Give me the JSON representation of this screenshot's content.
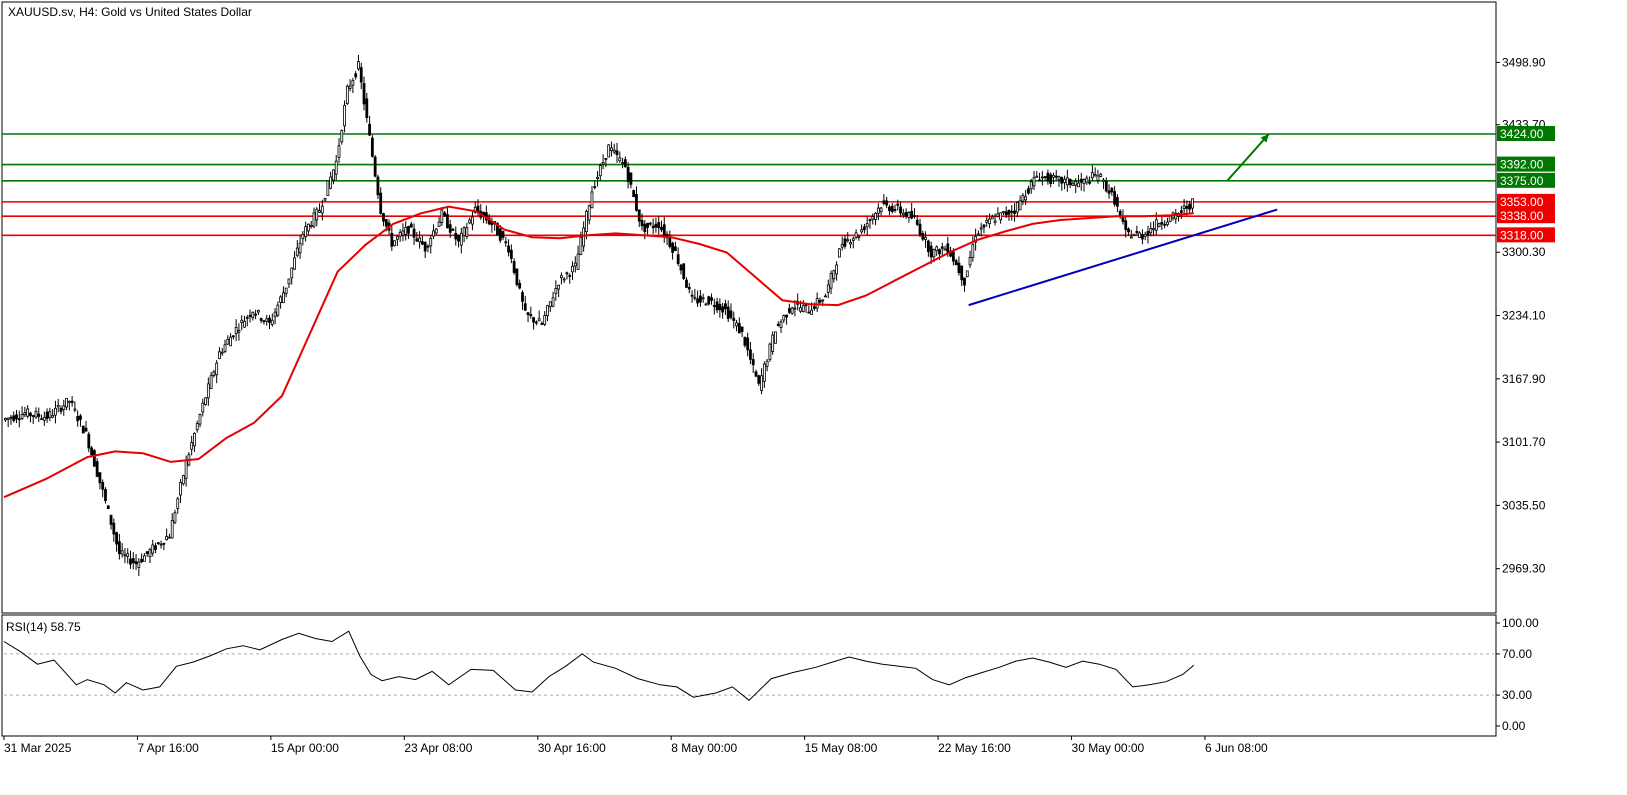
{
  "chart_data": {
    "type": "candlestick",
    "title": "XAUUSD.sv, H4:  Gold vs United States Dollar",
    "y_ticks": [
      "3498.90",
      "3433.70",
      "3300.30",
      "3234.10",
      "3167.90",
      "3101.70",
      "3035.50",
      "2969.30"
    ],
    "y_tick_values": [
      3498.9,
      3433.7,
      3300.3,
      3234.1,
      3167.9,
      3101.7,
      3035.5,
      2969.3
    ],
    "ylim": [
      2925,
      3560
    ],
    "x_ticks": [
      "31 Mar 2025",
      "7 Apr 16:00",
      "15 Apr 00:00",
      "23 Apr 08:00",
      "30 Apr 16:00",
      "8 May 00:00",
      "15 May 08:00",
      "22 May 16:00",
      "30 May 00:00",
      "6 Jun 08:00"
    ],
    "x_range_bars": [
      0,
      430
    ],
    "price_path": [
      [
        0,
        3125
      ],
      [
        8,
        3132
      ],
      [
        16,
        3128
      ],
      [
        24,
        3145
      ],
      [
        30,
        3110
      ],
      [
        36,
        3050
      ],
      [
        42,
        2985
      ],
      [
        48,
        2975
      ],
      [
        54,
        2990
      ],
      [
        60,
        3005
      ],
      [
        66,
        3080
      ],
      [
        72,
        3140
      ],
      [
        78,
        3195
      ],
      [
        84,
        3220
      ],
      [
        90,
        3240
      ],
      [
        96,
        3225
      ],
      [
        102,
        3265
      ],
      [
        108,
        3320
      ],
      [
        114,
        3345
      ],
      [
        120,
        3395
      ],
      [
        124,
        3470
      ],
      [
        128,
        3495
      ],
      [
        132,
        3420
      ],
      [
        136,
        3345
      ],
      [
        140,
        3310
      ],
      [
        146,
        3325
      ],
      [
        152,
        3305
      ],
      [
        158,
        3340
      ],
      [
        164,
        3310
      ],
      [
        170,
        3345
      ],
      [
        176,
        3330
      ],
      [
        182,
        3305
      ],
      [
        188,
        3235
      ],
      [
        194,
        3225
      ],
      [
        200,
        3270
      ],
      [
        206,
        3285
      ],
      [
        212,
        3365
      ],
      [
        218,
        3410
      ],
      [
        224,
        3390
      ],
      [
        230,
        3325
      ],
      [
        236,
        3330
      ],
      [
        242,
        3300
      ],
      [
        248,
        3250
      ],
      [
        254,
        3250
      ],
      [
        260,
        3240
      ],
      [
        266,
        3215
      ],
      [
        272,
        3160
      ],
      [
        278,
        3220
      ],
      [
        284,
        3245
      ],
      [
        290,
        3240
      ],
      [
        296,
        3255
      ],
      [
        302,
        3310
      ],
      [
        308,
        3320
      ],
      [
        316,
        3350
      ],
      [
        322,
        3345
      ],
      [
        328,
        3335
      ],
      [
        334,
        3300
      ],
      [
        340,
        3305
      ],
      [
        346,
        3270
      ],
      [
        350,
        3320
      ],
      [
        356,
        3335
      ],
      [
        364,
        3345
      ],
      [
        372,
        3380
      ],
      [
        380,
        3375
      ],
      [
        388,
        3372
      ],
      [
        394,
        3382
      ],
      [
        400,
        3355
      ],
      [
        404,
        3320
      ],
      [
        410,
        3318
      ],
      [
        416,
        3332
      ],
      [
        422,
        3338
      ],
      [
        426,
        3348
      ],
      [
        428,
        3352
      ]
    ],
    "ma_series": {
      "name": "",
      "color": "#e60000",
      "points": [
        [
          0,
          3044
        ],
        [
          15,
          3063
        ],
        [
          30,
          3086
        ],
        [
          40,
          3092
        ],
        [
          50,
          3090
        ],
        [
          60,
          3081
        ],
        [
          70,
          3084
        ],
        [
          80,
          3106
        ],
        [
          90,
          3122
        ],
        [
          100,
          3150
        ],
        [
          110,
          3215
        ],
        [
          120,
          3280
        ],
        [
          130,
          3308
        ],
        [
          140,
          3330
        ],
        [
          150,
          3341
        ],
        [
          160,
          3348
        ],
        [
          170,
          3343
        ],
        [
          180,
          3324
        ],
        [
          190,
          3316
        ],
        [
          200,
          3315
        ],
        [
          210,
          3318
        ],
        [
          220,
          3320
        ],
        [
          230,
          3318
        ],
        [
          240,
          3316
        ],
        [
          250,
          3309
        ],
        [
          260,
          3300
        ],
        [
          270,
          3275
        ],
        [
          280,
          3250
        ],
        [
          290,
          3246
        ],
        [
          300,
          3245
        ],
        [
          310,
          3255
        ],
        [
          320,
          3270
        ],
        [
          330,
          3285
        ],
        [
          340,
          3300
        ],
        [
          350,
          3313
        ],
        [
          360,
          3322
        ],
        [
          370,
          3330
        ],
        [
          380,
          3334
        ],
        [
          390,
          3336
        ],
        [
          400,
          3338
        ],
        [
          410,
          3338
        ],
        [
          420,
          3339
        ],
        [
          428,
          3341
        ]
      ]
    },
    "horizontal_levels": [
      {
        "value": 3424.0,
        "label": "3424.00",
        "color": "#007700"
      },
      {
        "value": 3392.0,
        "label": "3392.00",
        "color": "#007700"
      },
      {
        "value": 3375.0,
        "label": "3375.00",
        "color": "#007700"
      },
      {
        "value": 3353.0,
        "label": "3353.00",
        "color": "#ee0000"
      },
      {
        "value": 3338.0,
        "label": "3338.00",
        "color": "#ee0000"
      },
      {
        "value": 3318.0,
        "label": "3318.00",
        "color": "#ee0000"
      }
    ],
    "trendline": {
      "from": [
        347,
        3245
      ],
      "to": [
        458,
        3345
      ],
      "color": "#0000bb"
    },
    "arrow": {
      "from": [
        440,
        3375
      ],
      "to": [
        455,
        3424
      ],
      "color": "#007700"
    },
    "rsi": {
      "label": "RSI(14) 58.75",
      "y_ticks": [
        "100.00",
        "70.00",
        "30.00",
        "0.00"
      ],
      "y_tick_values": [
        100,
        70,
        30,
        0
      ],
      "levels": [
        70,
        30
      ],
      "values": [
        [
          0,
          82
        ],
        [
          6,
          72
        ],
        [
          12,
          60
        ],
        [
          18,
          64
        ],
        [
          22,
          52
        ],
        [
          26,
          40
        ],
        [
          30,
          45
        ],
        [
          36,
          40
        ],
        [
          40,
          32
        ],
        [
          44,
          42
        ],
        [
          50,
          35
        ],
        [
          56,
          38
        ],
        [
          62,
          58
        ],
        [
          68,
          62
        ],
        [
          74,
          68
        ],
        [
          80,
          75
        ],
        [
          86,
          78
        ],
        [
          92,
          74
        ],
        [
          100,
          84
        ],
        [
          106,
          90
        ],
        [
          112,
          85
        ],
        [
          118,
          82
        ],
        [
          124,
          92
        ],
        [
          128,
          68
        ],
        [
          132,
          50
        ],
        [
          136,
          44
        ],
        [
          142,
          48
        ],
        [
          148,
          45
        ],
        [
          154,
          53
        ],
        [
          160,
          40
        ],
        [
          168,
          55
        ],
        [
          176,
          54
        ],
        [
          184,
          35
        ],
        [
          190,
          33
        ],
        [
          196,
          48
        ],
        [
          202,
          58
        ],
        [
          208,
          70
        ],
        [
          212,
          62
        ],
        [
          220,
          56
        ],
        [
          228,
          46
        ],
        [
          236,
          40
        ],
        [
          242,
          38
        ],
        [
          248,
          28
        ],
        [
          256,
          32
        ],
        [
          262,
          38
        ],
        [
          268,
          25
        ],
        [
          276,
          46
        ],
        [
          284,
          52
        ],
        [
          292,
          57
        ],
        [
          298,
          62
        ],
        [
          304,
          67
        ],
        [
          310,
          63
        ],
        [
          316,
          60
        ],
        [
          322,
          58
        ],
        [
          328,
          56
        ],
        [
          334,
          45
        ],
        [
          340,
          40
        ],
        [
          346,
          47
        ],
        [
          352,
          52
        ],
        [
          358,
          57
        ],
        [
          364,
          63
        ],
        [
          370,
          66
        ],
        [
          376,
          62
        ],
        [
          382,
          57
        ],
        [
          388,
          63
        ],
        [
          394,
          60
        ],
        [
          400,
          55
        ],
        [
          406,
          38
        ],
        [
          412,
          40
        ],
        [
          418,
          43
        ],
        [
          424,
          50
        ],
        [
          428,
          59
        ]
      ]
    }
  }
}
